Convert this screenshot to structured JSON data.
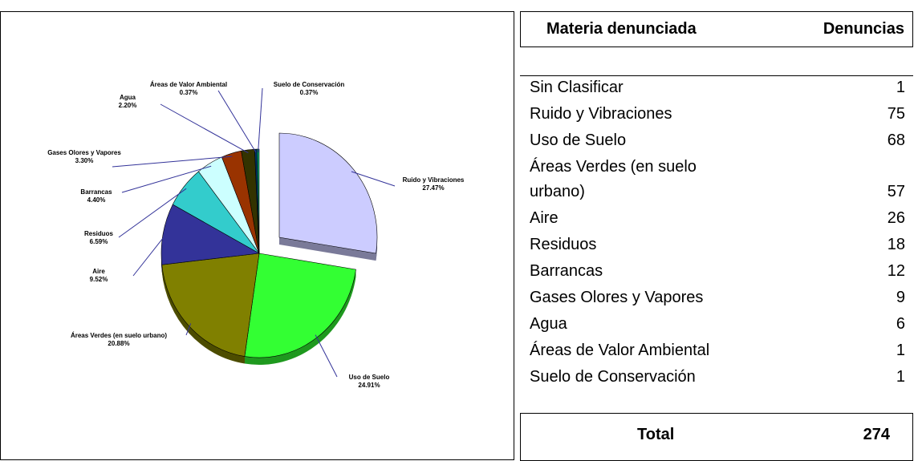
{
  "chart_data": {
    "type": "pie",
    "categories": [
      "Ruido y Vibraciones",
      "Uso de Suelo",
      "Áreas Verdes (en suelo urbano)",
      "Aire",
      "Residuos",
      "Barrancas",
      "Gases Olores y Vapores",
      "Agua",
      "Áreas de Valor Ambiental",
      "Suelo de Conservación"
    ],
    "values": [
      27.47,
      24.91,
      20.88,
      9.52,
      6.59,
      4.4,
      3.3,
      2.2,
      0.37,
      0.37
    ],
    "value_labels": [
      "27.47%",
      "24.91%",
      "20.88%",
      "9.52%",
      "6.59%",
      "4.40%",
      "3.30%",
      "2.20%",
      "0.37%",
      "0.37%"
    ],
    "colors": [
      "#ccccff",
      "#33ff33",
      "#808000",
      "#333399",
      "#33cccc",
      "#ccffff",
      "#993300",
      "#333300",
      "#003366",
      "#009966"
    ]
  },
  "table": {
    "header": [
      "Materia denunciada",
      "Denuncias"
    ],
    "rows": [
      [
        "Sin Clasificar",
        1
      ],
      [
        "Ruido y Vibraciones",
        75
      ],
      [
        "Uso de Suelo",
        68
      ],
      [
        "Áreas Verdes (en suelo urbano)",
        57
      ],
      [
        "Aire",
        26
      ],
      [
        "Residuos",
        18
      ],
      [
        "Barrancas",
        12
      ],
      [
        "Gases Olores y Vapores",
        9
      ],
      [
        "Agua",
        6
      ],
      [
        "Áreas de Valor Ambiental",
        1
      ],
      [
        "Suelo de Conservación",
        1
      ]
    ],
    "total": [
      "Total",
      274
    ]
  }
}
